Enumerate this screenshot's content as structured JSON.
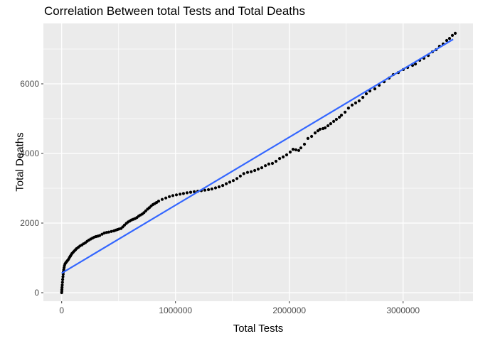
{
  "chart_data": {
    "type": "scatter",
    "title": "Correlation Between total Tests and Total Deaths",
    "xlabel": "Total Tests",
    "ylabel": "Total Deaths",
    "legend": "none",
    "grid": true,
    "x_ticks": [
      {
        "value": 0,
        "label": "0"
      },
      {
        "value": 1000000,
        "label": "1000000"
      },
      {
        "value": 2000000,
        "label": "2000000"
      },
      {
        "value": 3000000,
        "label": "3000000"
      }
    ],
    "x_minor": [
      500000,
      1500000,
      2500000,
      3500000
    ],
    "y_ticks": [
      {
        "value": 0,
        "label": "0"
      },
      {
        "value": 2000,
        "label": "2000"
      },
      {
        "value": 4000,
        "label": "4000"
      },
      {
        "value": 6000,
        "label": "6000"
      }
    ],
    "y_minor": [
      1000,
      3000,
      5000,
      7000
    ],
    "xlim": [
      -157000,
      3630000
    ],
    "ylim": [
      -245,
      7730
    ],
    "colors": {
      "panel_bg": "#EBEBEB",
      "grid": "#FFFFFF",
      "points": "#000000",
      "smooth_line": "#3366FF",
      "tick_labels": "#4D4D4D",
      "axis_ticks": "#333333",
      "title": "#000000"
    },
    "smooth_line": {
      "type": "linear",
      "x": [
        0,
        3440000
      ],
      "y": [
        560,
        7280
      ]
    },
    "points": [
      [
        0,
        0
      ],
      [
        1000,
        40
      ],
      [
        2000,
        90
      ],
      [
        3000,
        150
      ],
      [
        5000,
        220
      ],
      [
        7000,
        300
      ],
      [
        9000,
        380
      ],
      [
        11000,
        460
      ],
      [
        13000,
        530
      ],
      [
        15000,
        600
      ],
      [
        18000,
        660
      ],
      [
        21000,
        720
      ],
      [
        25000,
        780
      ],
      [
        30000,
        830
      ],
      [
        36000,
        860
      ],
      [
        43000,
        890
      ],
      [
        52000,
        925
      ],
      [
        60000,
        960
      ],
      [
        68000,
        1010
      ],
      [
        76000,
        1050
      ],
      [
        83000,
        1090
      ],
      [
        92000,
        1130
      ],
      [
        102000,
        1165
      ],
      [
        112000,
        1200
      ],
      [
        122000,
        1235
      ],
      [
        132000,
        1270
      ],
      [
        146000,
        1305
      ],
      [
        160000,
        1340
      ],
      [
        177000,
        1370
      ],
      [
        192000,
        1405
      ],
      [
        208000,
        1435
      ],
      [
        224000,
        1475
      ],
      [
        239000,
        1510
      ],
      [
        255000,
        1540
      ],
      [
        271000,
        1570
      ],
      [
        287000,
        1595
      ],
      [
        302000,
        1612
      ],
      [
        318000,
        1625
      ],
      [
        333000,
        1640
      ],
      [
        355000,
        1680
      ],
      [
        375000,
        1715
      ],
      [
        395000,
        1730
      ],
      [
        414000,
        1740
      ],
      [
        436000,
        1760
      ],
      [
        458000,
        1775
      ],
      [
        474000,
        1795
      ],
      [
        490000,
        1815
      ],
      [
        505000,
        1830
      ],
      [
        521000,
        1843
      ],
      [
        537000,
        1890
      ],
      [
        552000,
        1940
      ],
      [
        568000,
        1990
      ],
      [
        583000,
        2030
      ],
      [
        598000,
        2060
      ],
      [
        614000,
        2090
      ],
      [
        630000,
        2110
      ],
      [
        646000,
        2130
      ],
      [
        661000,
        2160
      ],
      [
        677000,
        2200
      ],
      [
        692000,
        2230
      ],
      [
        708000,
        2260
      ],
      [
        723000,
        2300
      ],
      [
        739000,
        2350
      ],
      [
        755000,
        2400
      ],
      [
        770000,
        2440
      ],
      [
        786000,
        2490
      ],
      [
        802000,
        2530
      ],
      [
        817000,
        2560
      ],
      [
        833000,
        2590
      ],
      [
        852000,
        2630
      ],
      [
        883000,
        2680
      ],
      [
        915000,
        2720
      ],
      [
        946000,
        2760
      ],
      [
        977000,
        2790
      ],
      [
        1008000,
        2810
      ],
      [
        1040000,
        2830
      ],
      [
        1070000,
        2850
      ],
      [
        1102000,
        2870
      ],
      [
        1133000,
        2885
      ],
      [
        1165000,
        2900
      ],
      [
        1196000,
        2915
      ],
      [
        1227000,
        2930
      ],
      [
        1258000,
        2945
      ],
      [
        1290000,
        2960
      ],
      [
        1320000,
        2980
      ],
      [
        1352000,
        3010
      ],
      [
        1383000,
        3040
      ],
      [
        1415000,
        3080
      ],
      [
        1446000,
        3130
      ],
      [
        1477000,
        3175
      ],
      [
        1508000,
        3220
      ],
      [
        1540000,
        3280
      ],
      [
        1570000,
        3350
      ],
      [
        1600000,
        3420
      ],
      [
        1633000,
        3455
      ],
      [
        1665000,
        3475
      ],
      [
        1696000,
        3510
      ],
      [
        1727000,
        3550
      ],
      [
        1758000,
        3590
      ],
      [
        1790000,
        3650
      ],
      [
        1820000,
        3695
      ],
      [
        1852000,
        3715
      ],
      [
        1883000,
        3775
      ],
      [
        1915000,
        3855
      ],
      [
        1946000,
        3900
      ],
      [
        1977000,
        3960
      ],
      [
        2008000,
        4040
      ],
      [
        2033000,
        4120
      ],
      [
        2058000,
        4105
      ],
      [
        2083000,
        4085
      ],
      [
        2102000,
        4160
      ],
      [
        2133000,
        4265
      ],
      [
        2164000,
        4430
      ],
      [
        2196000,
        4490
      ],
      [
        2227000,
        4590
      ],
      [
        2252000,
        4650
      ],
      [
        2270000,
        4695
      ],
      [
        2296000,
        4715
      ],
      [
        2315000,
        4735
      ],
      [
        2340000,
        4795
      ],
      [
        2364000,
        4855
      ],
      [
        2390000,
        4920
      ],
      [
        2414000,
        4980
      ],
      [
        2440000,
        5040
      ],
      [
        2458000,
        5100
      ],
      [
        2490000,
        5185
      ],
      [
        2520000,
        5305
      ],
      [
        2552000,
        5390
      ],
      [
        2583000,
        5450
      ],
      [
        2614000,
        5510
      ],
      [
        2646000,
        5610
      ],
      [
        2677000,
        5715
      ],
      [
        2708000,
        5795
      ],
      [
        2752000,
        5855
      ],
      [
        2790000,
        5960
      ],
      [
        2833000,
        6060
      ],
      [
        2877000,
        6165
      ],
      [
        2914000,
        6265
      ],
      [
        2958000,
        6325
      ],
      [
        3002000,
        6410
      ],
      [
        3040000,
        6470
      ],
      [
        3083000,
        6530
      ],
      [
        3108000,
        6570
      ],
      [
        3146000,
        6675
      ],
      [
        3183000,
        6735
      ],
      [
        3221000,
        6815
      ],
      [
        3258000,
        6920
      ],
      [
        3290000,
        6980
      ],
      [
        3320000,
        7080
      ],
      [
        3352000,
        7145
      ],
      [
        3383000,
        7245
      ],
      [
        3408000,
        7305
      ],
      [
        3433000,
        7390
      ],
      [
        3458000,
        7450
      ]
    ]
  }
}
